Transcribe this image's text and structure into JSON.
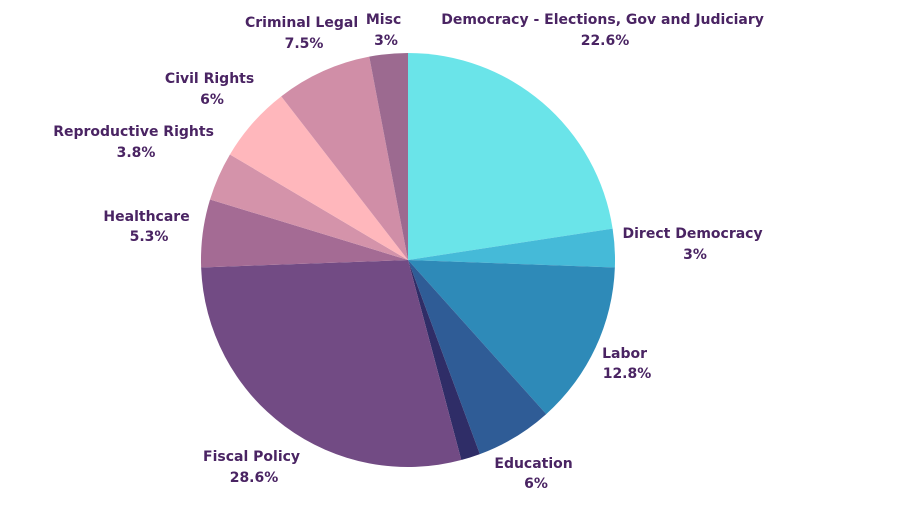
{
  "chart_data": {
    "type": "pie",
    "slices": [
      {
        "label": "Democracy - Elections, Gov and Judiciary",
        "value_label": "22.6%",
        "value": 22.6,
        "color": "#6ae4e9"
      },
      {
        "label": "Direct Democracy",
        "value_label": "3%",
        "value": 3.0,
        "color": "#45bad8"
      },
      {
        "label": "Labor",
        "value_label": "12.8%",
        "value": 12.8,
        "color": "#2e8ab8"
      },
      {
        "label": "Education",
        "value_label": "6%",
        "value": 6.0,
        "color": "#2f5c96"
      },
      {
        "label": "",
        "value_label": "",
        "value": 1.5,
        "color": "#2f2d67"
      },
      {
        "label": "Fiscal Policy",
        "value_label": "28.6%",
        "value": 28.6,
        "color": "#724b84"
      },
      {
        "label": "Healthcare",
        "value_label": "5.3%",
        "value": 5.3,
        "color": "#a46b94"
      },
      {
        "label": "Reproductive Rights",
        "value_label": "3.8%",
        "value": 3.8,
        "color": "#d493aa"
      },
      {
        "label": "Civil Rights",
        "value_label": "6%",
        "value": 6.0,
        "color": "#ffb7bc"
      },
      {
        "label": "Criminal Legal",
        "value_label": "7.5%",
        "value": 7.5,
        "color": "#d08ea7"
      },
      {
        "label": "Misc",
        "value_label": "3%",
        "value": 3.0,
        "color": "#9c6a90"
      }
    ],
    "start_angle_deg": 0,
    "direction": "clockwise",
    "legend": "none"
  }
}
